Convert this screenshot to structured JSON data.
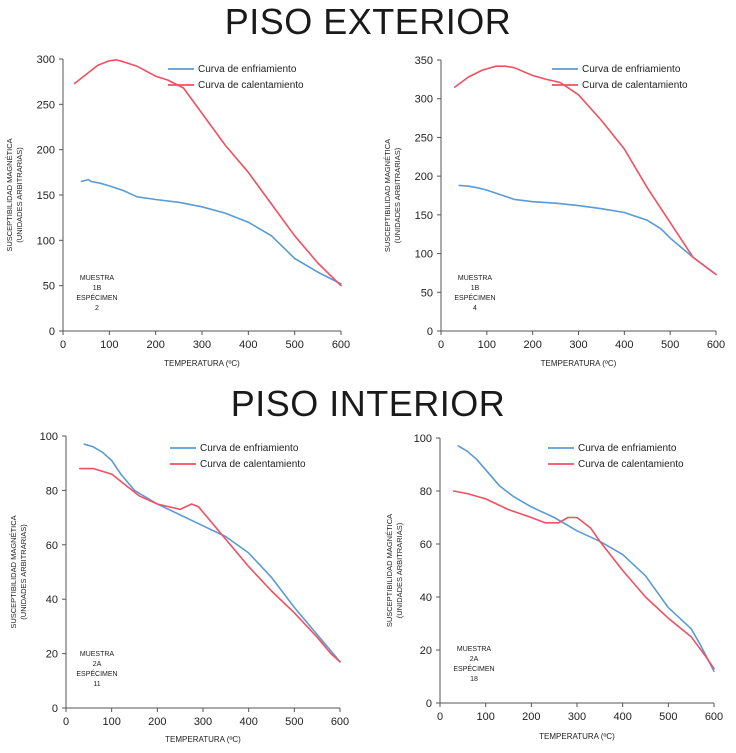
{
  "sections": {
    "exterior_title": "PISO EXTERIOR",
    "interior_title": "PISO INTERIOR"
  },
  "chart_data": [
    {
      "type": "line",
      "title": "PISO EXTERIOR",
      "xlabel": "TEMPERATURA (ºC)",
      "ylabel": [
        "SUSCEPTIBILIDAD MAGNÉTICA",
        "(UNIDADES ARBITRARIAS)"
      ],
      "xlim": [
        0,
        600
      ],
      "ylim": [
        0,
        300
      ],
      "xticks": [
        0,
        100,
        200,
        300,
        400,
        500,
        600
      ],
      "yticks": [
        0,
        50,
        100,
        150,
        200,
        250,
        300
      ],
      "sample_label": [
        "MUESTRA",
        "1B",
        "ESPÉCIMEN",
        "2"
      ],
      "series": [
        {
          "name": "Curva de enfriamiento",
          "color": "#5b9bd5",
          "x": [
            40,
            55,
            60,
            80,
            100,
            130,
            160,
            200,
            250,
            300,
            350,
            400,
            450,
            500,
            550,
            600
          ],
          "y": [
            165,
            167,
            165,
            163,
            160,
            155,
            148,
            145,
            142,
            137,
            130,
            120,
            105,
            80,
            65,
            52
          ]
        },
        {
          "name": "Curva de calentamiento",
          "color": "#f05060",
          "x": [
            25,
            50,
            75,
            100,
            115,
            130,
            160,
            200,
            225,
            260,
            300,
            350,
            400,
            450,
            500,
            550,
            600
          ],
          "y": [
            273,
            283,
            293,
            298,
            299,
            297,
            292,
            281,
            277,
            268,
            240,
            205,
            175,
            140,
            105,
            75,
            50
          ]
        }
      ]
    },
    {
      "type": "line",
      "title": "PISO EXTERIOR",
      "xlabel": "TEMPERATURA (ºC)",
      "ylabel": [
        "SUSCEPTIBILIDAD MAGNÉTICA",
        "(UNIDADES ARBITRARIAS)"
      ],
      "xlim": [
        0,
        600
      ],
      "ylim": [
        0,
        350
      ],
      "xticks": [
        0,
        100,
        200,
        300,
        400,
        500,
        600
      ],
      "yticks": [
        0,
        50,
        100,
        150,
        200,
        250,
        300,
        350
      ],
      "sample_label": [
        "MUESTRA",
        "1B",
        "ESPÉCIMEN",
        "4"
      ],
      "series": [
        {
          "name": "Curva de enfriamiento",
          "color": "#5b9bd5",
          "x": [
            40,
            60,
            80,
            100,
            130,
            160,
            200,
            250,
            300,
            350,
            400,
            450,
            480,
            500,
            550,
            600
          ],
          "y": [
            188,
            187,
            185,
            182,
            176,
            170,
            167,
            165,
            162,
            158,
            153,
            143,
            132,
            120,
            95,
            73
          ]
        },
        {
          "name": "Curva de calentamiento",
          "color": "#f05060",
          "x": [
            30,
            60,
            90,
            120,
            140,
            160,
            200,
            230,
            260,
            300,
            350,
            400,
            450,
            500,
            550,
            600
          ],
          "y": [
            315,
            328,
            337,
            342,
            342,
            340,
            330,
            325,
            321,
            305,
            272,
            235,
            185,
            140,
            95,
            73
          ]
        }
      ]
    },
    {
      "type": "line",
      "title": "PISO INTERIOR",
      "xlabel": "TEMPERATURA (ºC)",
      "ylabel": [
        "SUSCEPTIBILIDAD MAGNÉTICA",
        "(UNIDADES ARBITRARIAS)"
      ],
      "xlim": [
        0,
        600
      ],
      "ylim": [
        0,
        100
      ],
      "xticks": [
        0,
        100,
        200,
        300,
        400,
        500,
        600
      ],
      "yticks": [
        0,
        20,
        40,
        60,
        80,
        100
      ],
      "sample_label": [
        "MUESTRA",
        "2A",
        "ESPÉCIMEN",
        "11"
      ],
      "series": [
        {
          "name": "Curva de enfriamiento",
          "color": "#5b9bd5",
          "x": [
            40,
            60,
            80,
            100,
            120,
            150,
            200,
            250,
            300,
            350,
            400,
            450,
            500,
            550,
            580,
            600
          ],
          "y": [
            97,
            96,
            94,
            91,
            86,
            80,
            75,
            71,
            67,
            63,
            57,
            48,
            37,
            27,
            21,
            17
          ]
        },
        {
          "name": "Curva de calentamiento",
          "color": "#f05060",
          "x": [
            30,
            60,
            100,
            130,
            160,
            200,
            250,
            275,
            290,
            310,
            350,
            400,
            450,
            500,
            550,
            580,
            600
          ],
          "y": [
            88,
            88,
            86,
            82,
            78,
            75,
            73,
            75,
            74,
            70,
            62,
            52,
            43,
            35,
            26,
            20,
            17
          ]
        }
      ]
    },
    {
      "type": "line",
      "title": "PISO INTERIOR",
      "xlabel": "TEMPERATURA (ºC)",
      "ylabel": [
        "SUSCEPTIBILIDAD MAGNÉTICA",
        "(UNIDADES ARBITRARIAS)"
      ],
      "xlim": [
        0,
        600
      ],
      "ylim": [
        0,
        100
      ],
      "xticks": [
        0,
        100,
        200,
        300,
        400,
        500,
        600
      ],
      "yticks": [
        0,
        20,
        40,
        60,
        80,
        100
      ],
      "sample_label": [
        "MUESTRA",
        "2A",
        "ESPÉCIMEN",
        "18"
      ],
      "series": [
        {
          "name": "Curva de enfriamiento",
          "color": "#5b9bd5",
          "x": [
            40,
            60,
            80,
            100,
            130,
            160,
            200,
            250,
            300,
            350,
            400,
            450,
            500,
            550,
            570,
            600
          ],
          "y": [
            97,
            95,
            92,
            88,
            82,
            78,
            74,
            70,
            65,
            61,
            56,
            48,
            36,
            28,
            22,
            12
          ]
        },
        {
          "name": "Curva de calentamiento",
          "color": "#f05060",
          "x": [
            30,
            60,
            100,
            150,
            200,
            230,
            260,
            280,
            300,
            330,
            350,
            400,
            450,
            500,
            550,
            580,
            600
          ],
          "y": [
            80,
            79,
            77,
            73,
            70,
            68,
            68,
            70,
            70,
            66,
            61,
            50,
            40,
            32,
            25,
            18,
            13
          ]
        }
      ]
    }
  ]
}
